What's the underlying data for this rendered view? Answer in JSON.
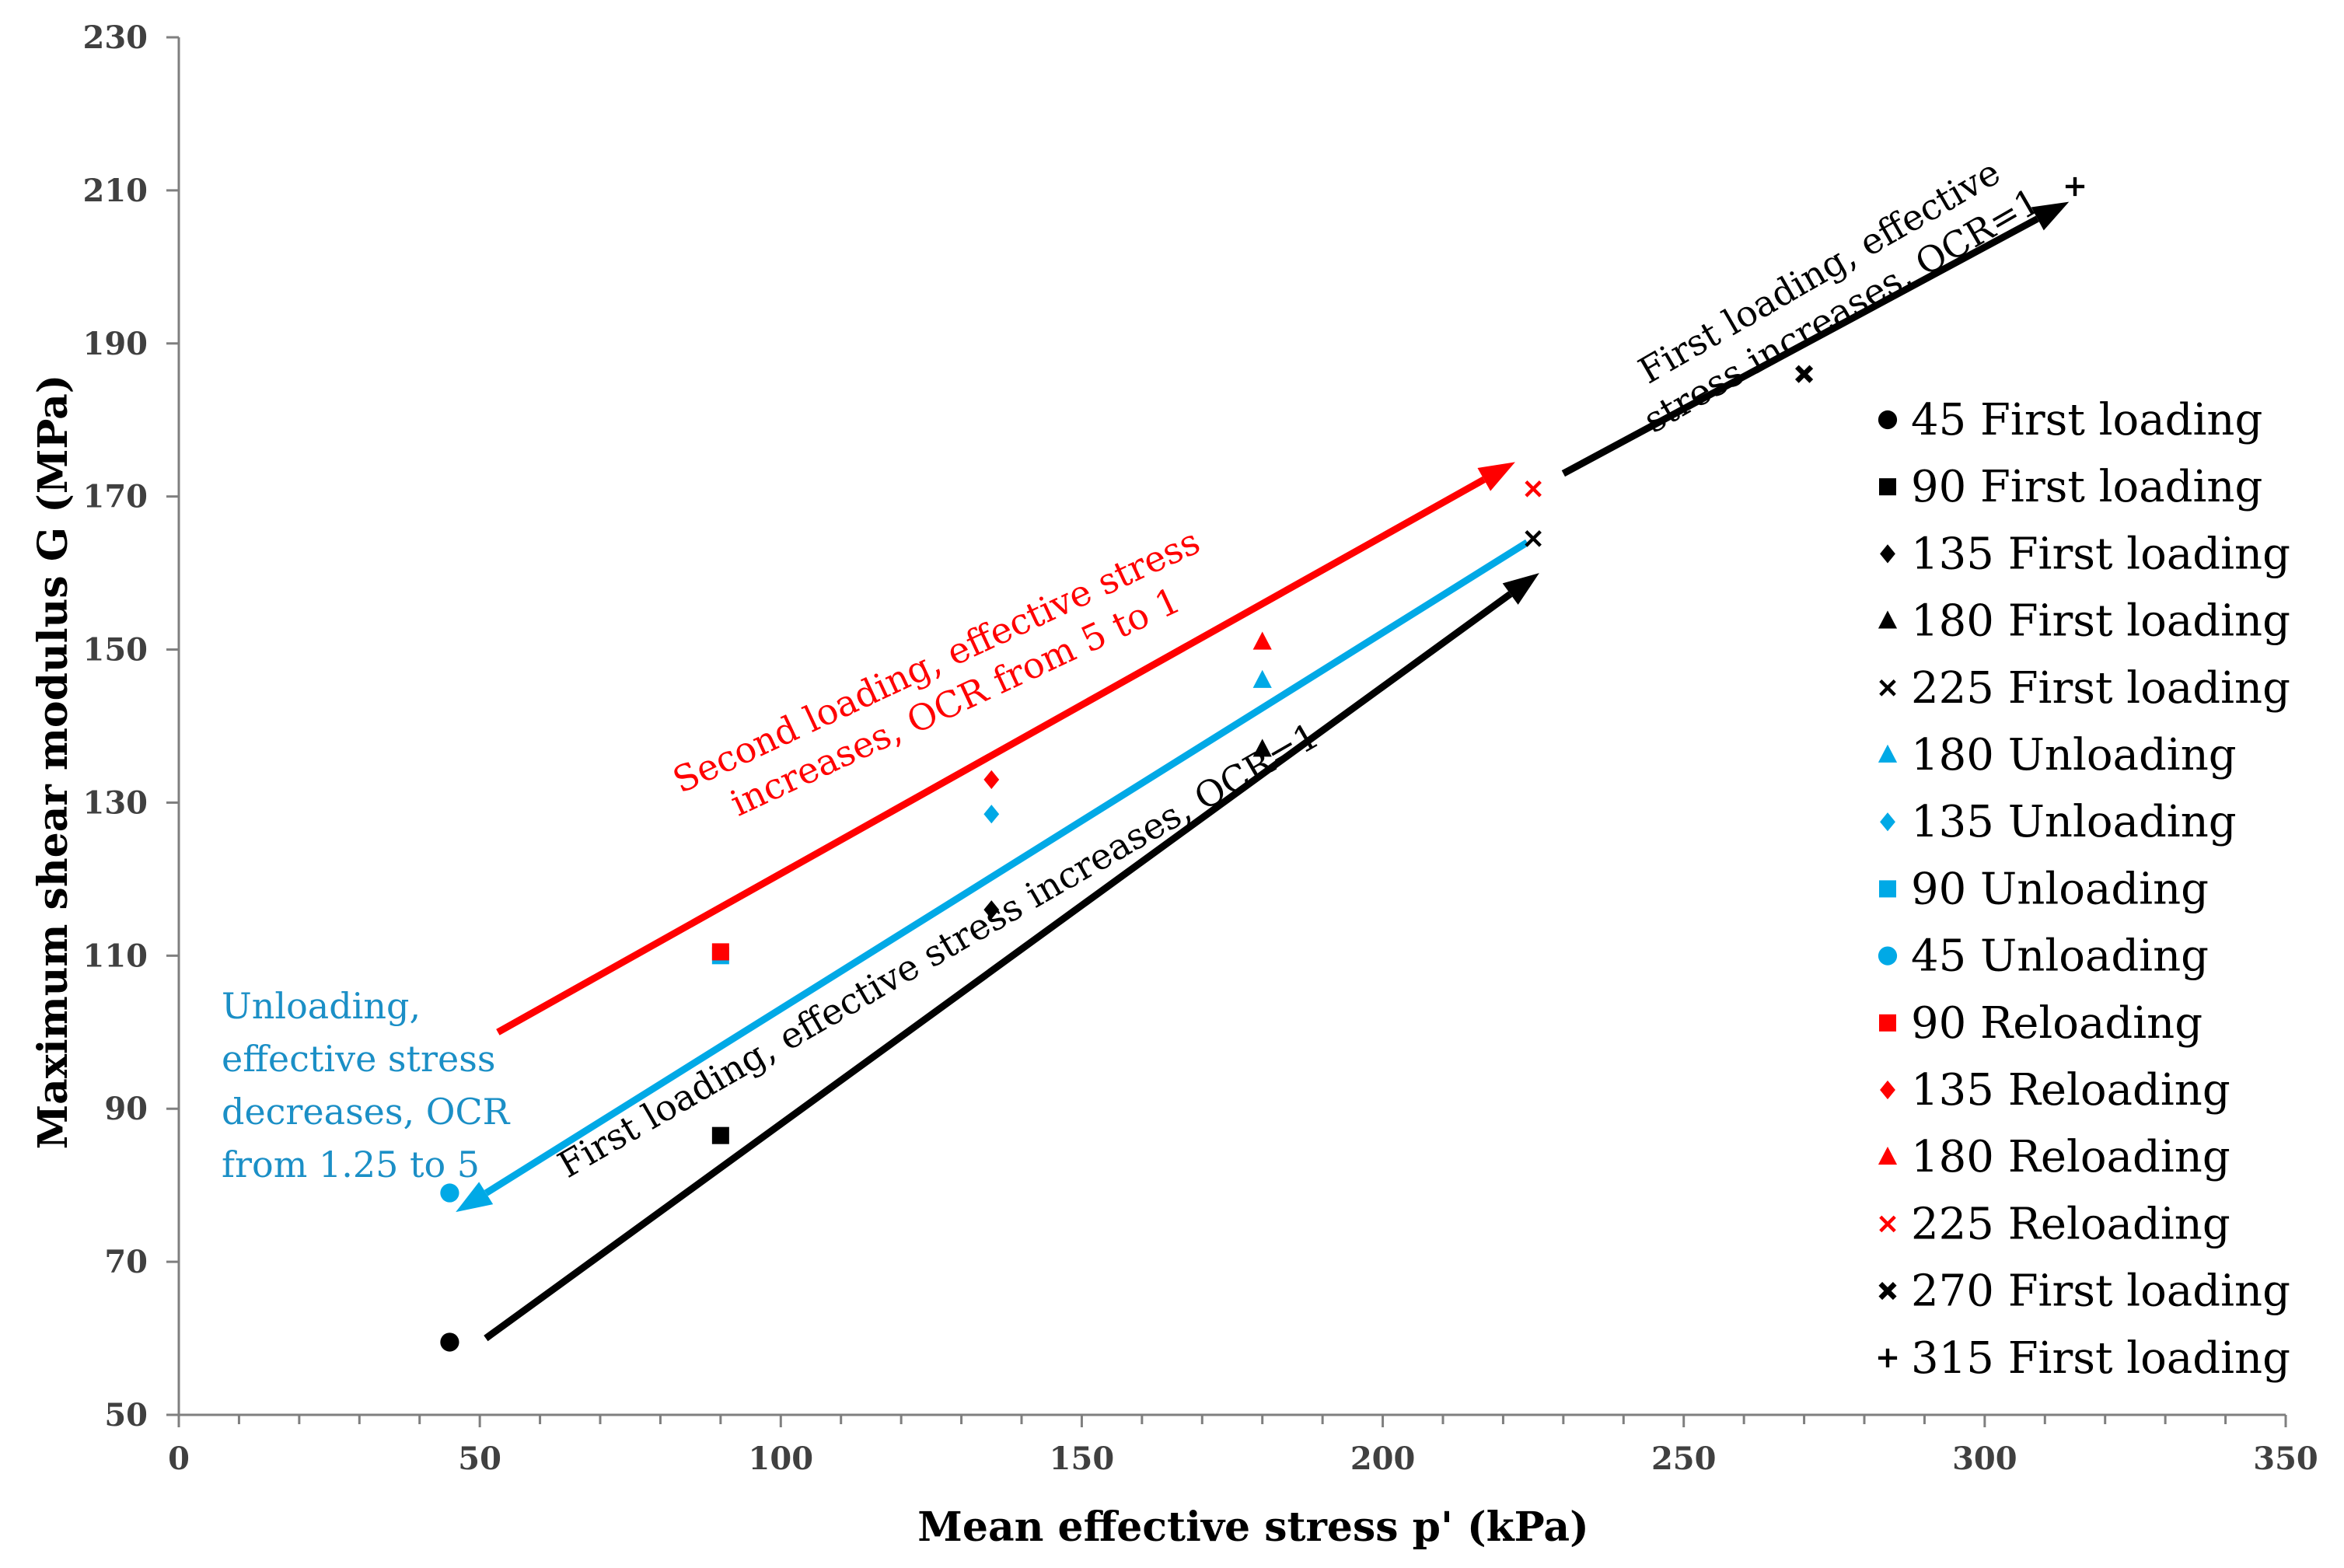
{
  "chart_data": {
    "type": "scatter",
    "xlabel": "Mean effective stress p' (kPa)",
    "ylabel": "Maximum shear modulus G (MPa)",
    "xlim": [
      0,
      350
    ],
    "ylim": [
      50,
      230
    ],
    "x_ticks": [
      0,
      50,
      100,
      150,
      200,
      250,
      300,
      350
    ],
    "y_ticks": [
      50,
      70,
      90,
      110,
      130,
      150,
      170,
      190,
      210,
      230
    ],
    "legend_position": "right",
    "series": [
      {
        "name": "45 First loading",
        "marker": "circle",
        "color": "#000000",
        "points": [
          [
            45,
            59.5
          ]
        ]
      },
      {
        "name": "90 First loading",
        "marker": "square",
        "color": "#000000",
        "points": [
          [
            90,
            86.5
          ]
        ]
      },
      {
        "name": "135 First loading",
        "marker": "diamond",
        "color": "#000000",
        "points": [
          [
            135,
            116
          ]
        ]
      },
      {
        "name": "180 First loading",
        "marker": "triangle",
        "color": "#000000",
        "points": [
          [
            180,
            137
          ]
        ]
      },
      {
        "name": "225 First loading",
        "marker": "x",
        "color": "#000000",
        "points": [
          [
            225,
            164.5
          ]
        ]
      },
      {
        "name": "180 Unloading",
        "marker": "triangle",
        "color": "#00A9E6",
        "points": [
          [
            180,
            146
          ]
        ]
      },
      {
        "name": "135 Unloading",
        "marker": "diamond",
        "color": "#00A9E6",
        "points": [
          [
            135,
            128.5
          ]
        ]
      },
      {
        "name": "90 Unloading",
        "marker": "square",
        "color": "#00A9E6",
        "points": [
          [
            90,
            110
          ]
        ]
      },
      {
        "name": "45 Unloading",
        "marker": "circle",
        "color": "#00A9E6",
        "points": [
          [
            45,
            79
          ]
        ]
      },
      {
        "name": "90 Reloading",
        "marker": "square",
        "color": "#FF0000",
        "points": [
          [
            90,
            110.5
          ]
        ]
      },
      {
        "name": "135 Reloading",
        "marker": "diamond",
        "color": "#FF0000",
        "points": [
          [
            135,
            133
          ]
        ]
      },
      {
        "name": "180 Reloading",
        "marker": "triangle",
        "color": "#FF0000",
        "points": [
          [
            180,
            151
          ]
        ]
      },
      {
        "name": "225 Reloading",
        "marker": "x",
        "color": "#FF0000",
        "points": [
          [
            225,
            171
          ]
        ]
      },
      {
        "name": "270 First loading",
        "marker": "bold-x",
        "color": "#000000",
        "points": [
          [
            270,
            186
          ]
        ]
      },
      {
        "name": "315 First loading",
        "marker": "plus",
        "color": "#000000",
        "points": [
          [
            315,
            210.5
          ]
        ]
      }
    ],
    "arrows": [
      {
        "name": "first-loading-arrow-lower",
        "color": "#000000",
        "from": [
          51,
          60
        ],
        "to": [
          226,
          160
        ]
      },
      {
        "name": "first-loading-arrow-upper",
        "color": "#000000",
        "from": [
          230,
          173
        ],
        "to": [
          314,
          208.5
        ]
      },
      {
        "name": "unloading-arrow",
        "color": "#00A9E6",
        "from": [
          224,
          164
        ],
        "to": [
          46,
          76.5
        ]
      },
      {
        "name": "reloading-arrow",
        "color": "#FF0000",
        "from": [
          53,
          100
        ],
        "to": [
          222,
          174.5
        ]
      }
    ],
    "annotations": {
      "first_loading_lower": "First loading,  effective  stress  increases,  OCR=1",
      "first_loading_upper_line1": "First  loading,  effective",
      "first_loading_upper_line2": "stress  increases,  OCR=1",
      "second_loading_line1": "Second loading,  effective  stress",
      "second_loading_line2": "increases,  OCR from 5 to 1",
      "unloading_line1": "Unloading,",
      "unloading_line2": "effective  stress",
      "unloading_line3": "decreases,  OCR",
      "unloading_line4": "from  1.25 to 5"
    },
    "annotation_colors": {
      "first_loading": "#000000",
      "second_loading": "#FF0000",
      "unloading": "#1B8FC6"
    }
  }
}
